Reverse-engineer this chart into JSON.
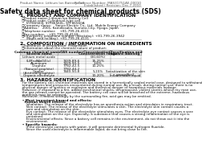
{
  "bg_color": "#ffffff",
  "header_left": "Product Name: Lithium Ion Battery Cell",
  "header_right_line1": "Reference Number: MAS31751AE-00010",
  "header_right_line2": "Established / Revision: Dec.7.2010",
  "title": "Safety data sheet for chemical products (SDS)",
  "section1_title": "1. PRODUCT AND COMPANY IDENTIFICATION",
  "section1_lines": [
    "  ・Product name: Lithium Ion Battery Cell",
    "  ・Product code: Cylindrical-type cell",
    "      SYF86560J, SYF86560L, SYF86560A",
    "  ・Company name:    Sanyo Electric Co., Ltd., Mobile Energy Company",
    "  ・Address:    2001, Kamikosaka, Sumoto-City, Hyogo, Japan",
    "  ・Telephone number:    +81-799-26-4111",
    "  ・Fax number:    +81-799-26-4120",
    "  ・Emergency telephone number (Weekday): +81-799-26-3942",
    "      (Night and holiday): +81-799-26-4131"
  ],
  "section2_title": "2. COMPOSITION / INFORMATION ON INGREDIENTS",
  "section2_lines": [
    "  ・Substance or preparation: Preparation",
    "  ・Information about the chemical nature of product:"
  ],
  "table_header_row1": [
    "Common chemical name /",
    "CAS number",
    "Concentration /",
    "Classification and"
  ],
  "table_header_row2": [
    "Several name",
    "",
    "Concentration range",
    "hazard labeling"
  ],
  "table_rows": [
    [
      "Lithium metal oxide\n(LiMnx(CrO4)x)",
      "-",
      "(30-60%)",
      "-"
    ],
    [
      "Iron",
      "7439-89-6",
      "15-25%",
      "-"
    ],
    [
      "Aluminum",
      "7429-90-5",
      "2-8%",
      "-"
    ],
    [
      "Graphite\n(Natural graphite)\n(Artificial graphite)",
      "7782-42-5\n7782-44-2",
      "10-25%",
      "-"
    ],
    [
      "Copper",
      "7440-50-8",
      "5-15%",
      "Sensitization of the skin\ngroup No.2"
    ],
    [
      "Organic electrolyte",
      "-",
      "10-20%",
      "Inflammable liquid"
    ]
  ],
  "section3_title": "3. HAZARDS IDENTIFICATION",
  "section3_text": [
    "  For the battery cell, chemical materials are stored in a hermetically sealed metal case, designed to withstand",
    "  temperatures and pressures encountered during normal use. As a result, during normal use, there is no",
    "  physical danger of ignition or explosion and thermical danger of hazardous materials leakage.",
    "  However, if exposed to a fire, added mechanical shocks, decomposed, violent storms whose my man use,",
    "  the gas release cannot be operated. The battery cell case will be breached of the extreme, hazardous",
    "  materials may be released.",
    "  Moreover, if heated strongly by the surrounding fire, acid gas may be emitted.",
    "",
    "  • Most important hazard and effects:",
    "    Human health effects:",
    "      Inhalation: The release of the electrolyte has an anesthesia action and stimulates in respiratory tract.",
    "      Skin contact: The release of the electrolyte stimulates a skin. The electrolyte skin contact causes a",
    "      sore and stimulation on the skin.",
    "      Eye contact: The release of the electrolyte stimulates eyes. The electrolyte eye contact causes a sore",
    "      and stimulation on the eye. Especially, a substance that causes a strong inflammation of the eye is",
    "      contained.",
    "      Environmental effects: Since a battery cell remains in the environment, do not throw out it into the",
    "      environment.",
    "",
    "  • Specific hazards:",
    "      If the electrolyte contacts with water, it will generate detrimental hydrogen fluoride.",
    "      Since the used electrolyte is inflammable liquid, do not bring close to fire."
  ]
}
